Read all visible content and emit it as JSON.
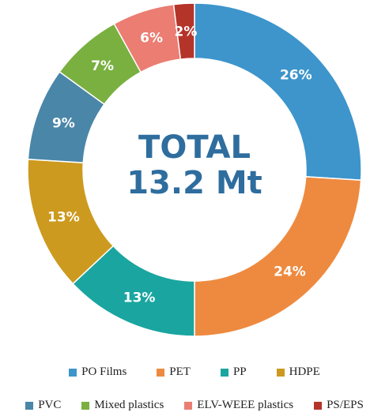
{
  "chart_data": {
    "type": "pie",
    "style": "donut",
    "center_text": [
      "TOTAL",
      "13.2 Mt"
    ],
    "categories": [
      "PO Films",
      "PET",
      "PP",
      "HDPE",
      "PVC",
      "Mixed plastics",
      "ELV-WEEE plastics",
      "PS/EPS"
    ],
    "values": [
      26,
      24,
      13,
      13,
      9,
      7,
      6,
      2
    ],
    "labels": [
      "26%",
      "24%",
      "13%",
      "13%",
      "9%",
      "7%",
      "6%",
      "2%"
    ],
    "colors": [
      "#3d95cc",
      "#ee8a3f",
      "#1aa5a0",
      "#cc9a1e",
      "#4a86a8",
      "#79b040",
      "#eb7d72",
      "#b5342a"
    ],
    "legend_position": "bottom"
  }
}
